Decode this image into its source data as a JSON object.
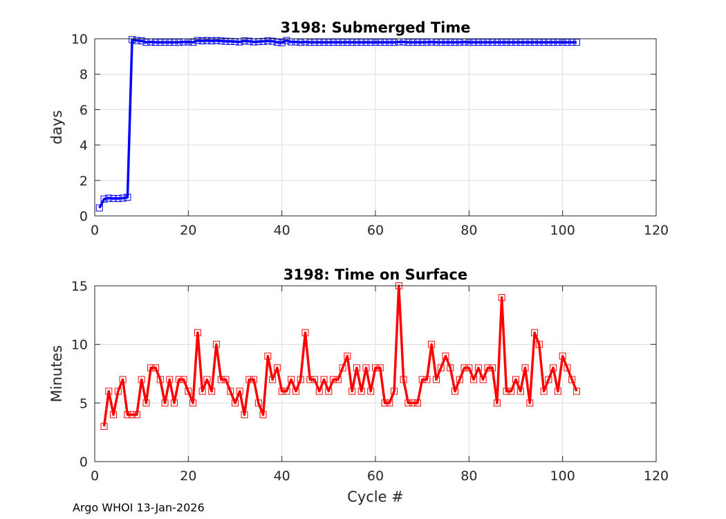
{
  "chart_data": [
    {
      "type": "line",
      "title": "3198: Submerged Time",
      "xlabel": "",
      "ylabel": "days",
      "xlim": [
        0,
        120
      ],
      "ylim": [
        0,
        10
      ],
      "xticks": [
        0,
        20,
        40,
        60,
        80,
        100,
        120
      ],
      "yticks": [
        0,
        2,
        4,
        6,
        8,
        10
      ],
      "grid": true,
      "color": "#0000ff",
      "marker": "square",
      "series": [
        {
          "name": "Submerged Time",
          "x": [
            1,
            2,
            3,
            4,
            5,
            6,
            7,
            8,
            9,
            10,
            11,
            12,
            13,
            14,
            15,
            16,
            17,
            18,
            19,
            20,
            21,
            22,
            23,
            24,
            25,
            26,
            27,
            28,
            29,
            30,
            31,
            32,
            33,
            34,
            35,
            36,
            37,
            38,
            39,
            40,
            41,
            42,
            43,
            44,
            45,
            46,
            47,
            48,
            49,
            50,
            51,
            52,
            53,
            54,
            55,
            56,
            57,
            58,
            59,
            60,
            61,
            62,
            63,
            64,
            65,
            66,
            67,
            68,
            69,
            70,
            71,
            72,
            73,
            74,
            75,
            76,
            77,
            78,
            79,
            80,
            81,
            82,
            83,
            84,
            85,
            86,
            87,
            88,
            89,
            90,
            91,
            92,
            93,
            94,
            95,
            96,
            97,
            98,
            99,
            100,
            101,
            102,
            103
          ],
          "values": [
            0.45,
            0.95,
            1.0,
            0.98,
            0.98,
            1.0,
            1.05,
            9.95,
            9.9,
            9.88,
            9.8,
            9.82,
            9.8,
            9.8,
            9.8,
            9.8,
            9.8,
            9.8,
            9.82,
            9.82,
            9.8,
            9.9,
            9.88,
            9.9,
            9.88,
            9.9,
            9.88,
            9.86,
            9.85,
            9.84,
            9.82,
            9.88,
            9.86,
            9.82,
            9.84,
            9.85,
            9.88,
            9.86,
            9.8,
            9.78,
            9.9,
            9.82,
            9.82,
            9.8,
            9.82,
            9.8,
            9.8,
            9.8,
            9.8,
            9.8,
            9.8,
            9.8,
            9.8,
            9.8,
            9.8,
            9.8,
            9.8,
            9.8,
            9.8,
            9.8,
            9.8,
            9.8,
            9.8,
            9.8,
            9.82,
            9.82,
            9.8,
            9.8,
            9.8,
            9.8,
            9.8,
            9.82,
            9.8,
            9.8,
            9.8,
            9.8,
            9.8,
            9.8,
            9.82,
            9.8,
            9.8,
            9.8,
            9.8,
            9.8,
            9.8,
            9.8,
            9.8,
            9.8,
            9.8,
            9.8,
            9.8,
            9.8,
            9.8,
            9.8,
            9.8,
            9.8,
            9.8,
            9.8,
            9.8,
            9.8,
            9.8,
            9.8,
            9.8
          ]
        }
      ]
    },
    {
      "type": "line",
      "title": "3198: Time on Surface",
      "xlabel": "Cycle #",
      "ylabel": "Minutes",
      "xlim": [
        0,
        120
      ],
      "ylim": [
        0,
        15
      ],
      "xticks": [
        0,
        20,
        40,
        60,
        80,
        100,
        120
      ],
      "yticks": [
        0,
        5,
        10,
        15
      ],
      "grid": true,
      "color": "#ff0000",
      "marker": "square",
      "series": [
        {
          "name": "Time on Surface",
          "x": [
            2,
            3,
            4,
            5,
            6,
            7,
            8,
            9,
            10,
            11,
            12,
            13,
            14,
            15,
            16,
            17,
            18,
            19,
            20,
            21,
            22,
            23,
            24,
            25,
            26,
            27,
            28,
            29,
            30,
            31,
            32,
            33,
            34,
            35,
            36,
            37,
            38,
            39,
            40,
            41,
            42,
            43,
            44,
            45,
            46,
            47,
            48,
            49,
            50,
            51,
            52,
            53,
            54,
            55,
            56,
            57,
            58,
            59,
            60,
            61,
            62,
            63,
            64,
            65,
            66,
            67,
            68,
            69,
            70,
            71,
            72,
            73,
            74,
            75,
            76,
            77,
            78,
            79,
            80,
            81,
            82,
            83,
            84,
            85,
            86,
            87,
            88,
            89,
            90,
            91,
            92,
            93,
            94,
            95,
            96,
            97,
            98,
            99,
            100,
            101,
            102,
            103
          ],
          "values": [
            3,
            6,
            4,
            6,
            7,
            4,
            4,
            4,
            7,
            5,
            8,
            8,
            7,
            5,
            7,
            5,
            7,
            7,
            6,
            5,
            11,
            6,
            7,
            6,
            10,
            7,
            7,
            6,
            5,
            6,
            4,
            7,
            7,
            5,
            4,
            9,
            7,
            8,
            6,
            6,
            7,
            6,
            7,
            11,
            7,
            7,
            6,
            7,
            6,
            7,
            7,
            8,
            9,
            6,
            8,
            6,
            8,
            6,
            8,
            8,
            5,
            5,
            6,
            15,
            7,
            5,
            5,
            5,
            7,
            7,
            10,
            7,
            8,
            9,
            8,
            6,
            7,
            8,
            8,
            7,
            8,
            7,
            8,
            8,
            5,
            14,
            6,
            6,
            7,
            6,
            8,
            5,
            11,
            10,
            6,
            7,
            8,
            6,
            9,
            8,
            7,
            6
          ]
        }
      ]
    }
  ],
  "footer": {
    "org": "Argo WHOI",
    "date": "13-Jan-2026"
  }
}
